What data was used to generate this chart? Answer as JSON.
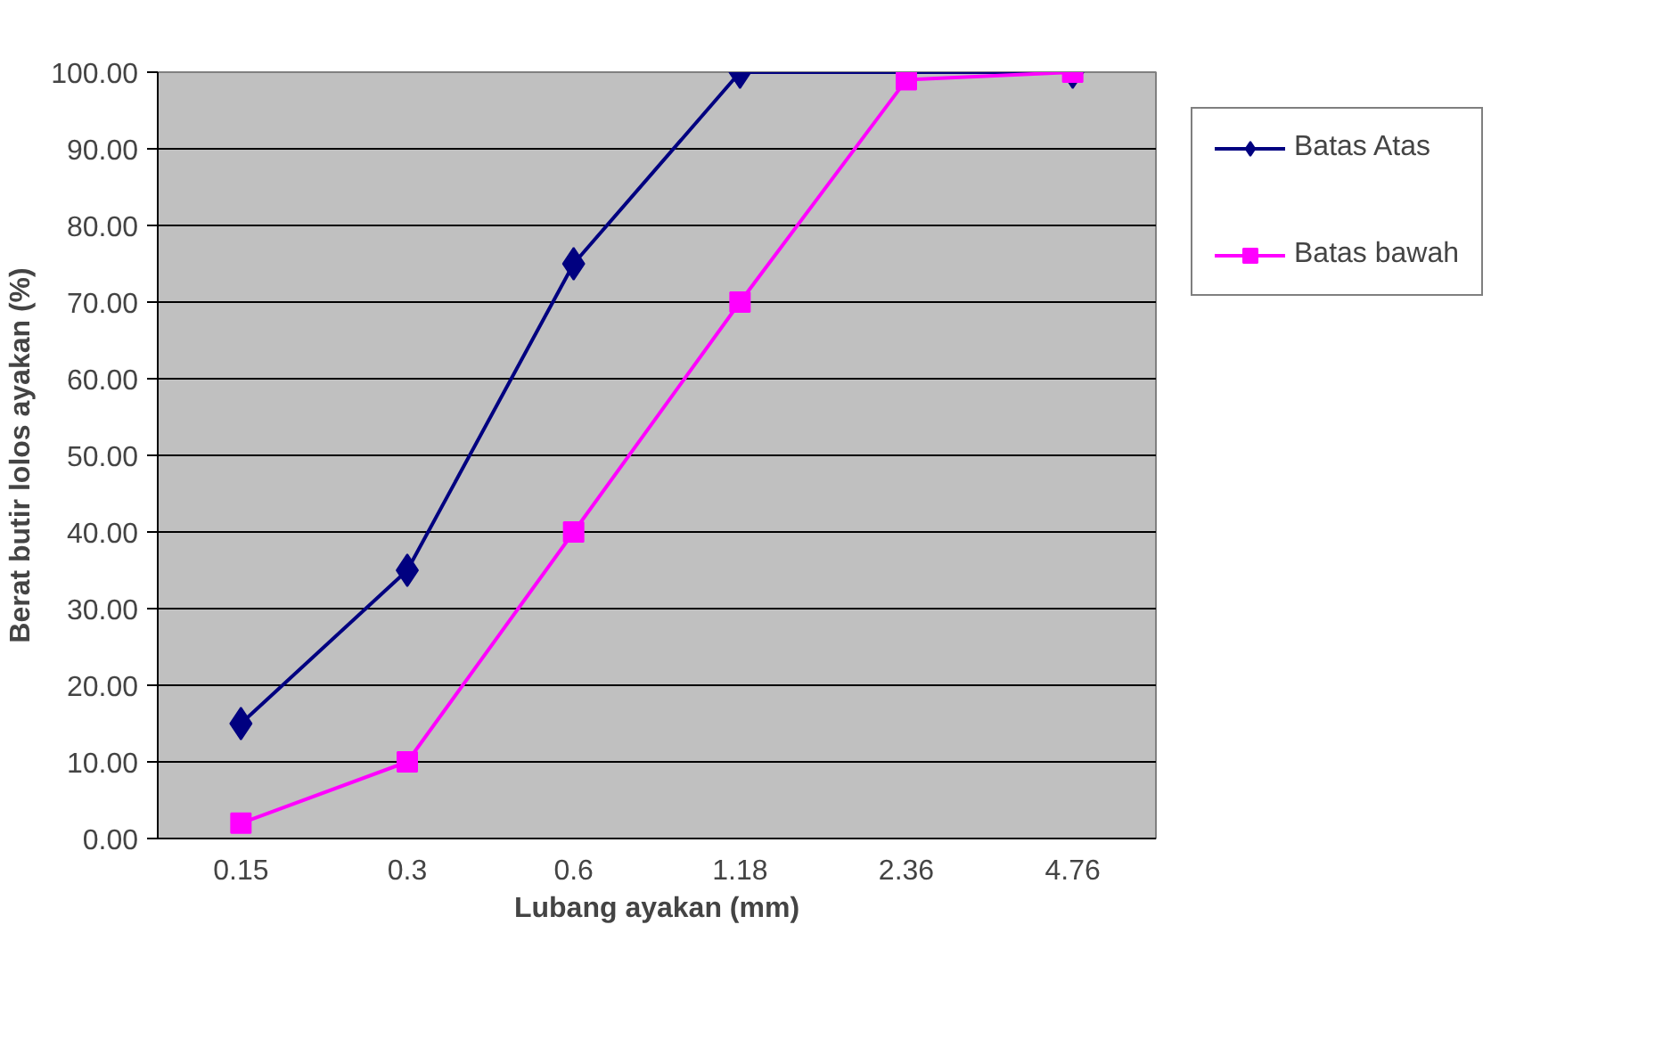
{
  "chart_data": {
    "type": "line",
    "xlabel": "Lubang ayakan (mm)",
    "ylabel": "Berat butir lolos ayakan (%)",
    "categories": [
      "0.15",
      "0.3",
      "0.6",
      "1.18",
      "2.36",
      "4.76"
    ],
    "series": [
      {
        "name": "Batas Atas",
        "color": "#000080",
        "marker": "diamond",
        "values": [
          15,
          35,
          75,
          100,
          100,
          100
        ]
      },
      {
        "name": "Batas bawah",
        "color": "#ff00ff",
        "marker": "square",
        "values": [
          2,
          10,
          40,
          70,
          99,
          100
        ]
      }
    ],
    "ylim": [
      0,
      100
    ],
    "yticks": [
      {
        "value": 0,
        "label": "0.00"
      },
      {
        "value": 10,
        "label": "10.00"
      },
      {
        "value": 20,
        "label": "20.00"
      },
      {
        "value": 30,
        "label": "30.00"
      },
      {
        "value": 40,
        "label": "40.00"
      },
      {
        "value": 50,
        "label": "50.00"
      },
      {
        "value": 60,
        "label": "60.00"
      },
      {
        "value": 70,
        "label": "70.00"
      },
      {
        "value": 80,
        "label": "80.00"
      },
      {
        "value": 90,
        "label": "90.00"
      },
      {
        "value": 100,
        "label": "100.00"
      }
    ],
    "grid": "y",
    "legend": "right",
    "line_style": "solid"
  }
}
